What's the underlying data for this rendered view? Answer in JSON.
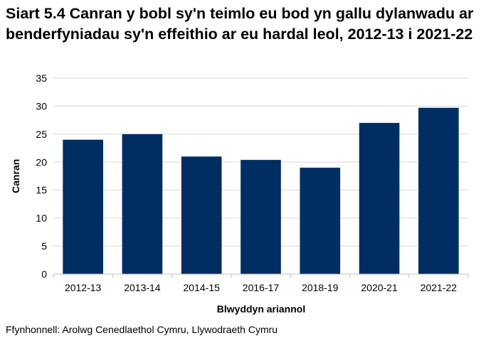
{
  "chart_data": {
    "type": "bar",
    "title": "Siart 5.4 Canran y bobl sy'n teimlo eu bod yn gallu dylanwadu ar benderfyniadau sy'n effeithio ar eu hardal leol, 2012-13 i 2021-22",
    "categories": [
      "2012-13",
      "2013-14",
      "2014-15",
      "2016-17",
      "2018-19",
      "2020-21",
      "2021-22"
    ],
    "values": [
      24,
      25,
      21,
      20.4,
      19,
      27,
      29.7
    ],
    "xlabel": "Blwyddyn ariannol",
    "ylabel": "Canran",
    "ylim": [
      0,
      35
    ],
    "yticks": [
      0,
      5,
      10,
      15,
      20,
      25,
      30,
      35
    ],
    "grid": true,
    "legend": "none",
    "bar_color": "#002d62",
    "grid_color": "#d9d9d9",
    "axis_color": "#bfbfbf"
  },
  "source": "Ffynhonnell: Arolwg Cenedlaethol Cymru, Llywodraeth Cymru"
}
